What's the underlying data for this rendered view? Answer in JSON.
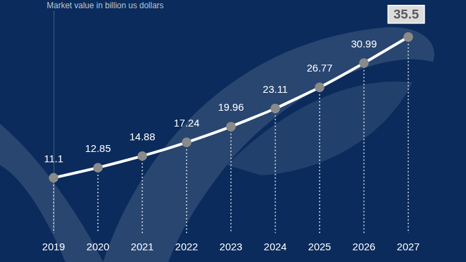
{
  "chart_data": {
    "type": "line",
    "subtitle": "Market value in billion us dollars",
    "categories": [
      "2019",
      "2020",
      "2021",
      "2022",
      "2023",
      "2024",
      "2025",
      "2026",
      "2027"
    ],
    "values": [
      11.1,
      12.85,
      14.88,
      17.24,
      19.96,
      23.11,
      26.77,
      30.99,
      35.5
    ],
    "color": "#ffffff",
    "marker": "circle",
    "data_labels": true,
    "tick_labels": "x",
    "ylim": [
      2,
      40
    ],
    "grid": false
  }
}
